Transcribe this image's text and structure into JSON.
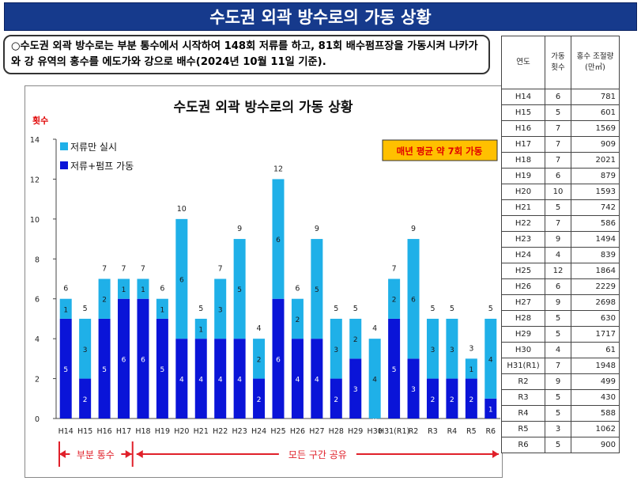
{
  "banner": {
    "title": "수도권 외곽 방수로의 가동 상황"
  },
  "summary": {
    "text": "○수도권 외곽 방수로는 부분 통수에서 시작하여 148회 저류를 하고, 81회 배수펌프장을 가동시켜 나카가와 강 유역의 홍수를 에도가와 강으로 배수(2024년 10월 11일 기준)."
  },
  "colors": {
    "stored_only": "#1fb0e8",
    "stored_pump": "#0a14d8",
    "arrow": "#e0202a",
    "callout_bg": "#ffc000",
    "callout_text": "#e00000",
    "banner_bg": "#163a8c"
  },
  "chart_data": {
    "type": "bar",
    "stacked": true,
    "title": "수도권 외곽 방수로의 가동 상황",
    "ylabel": "횟수",
    "xlabel": "",
    "ylim": [
      0,
      14
    ],
    "yticks": [
      0,
      2,
      4,
      6,
      8,
      10,
      12,
      14
    ],
    "grid": false,
    "legend_position": "top-left",
    "categories": [
      "H14",
      "H15",
      "H16",
      "H17",
      "H18",
      "H19",
      "H20",
      "H21",
      "H22",
      "H23",
      "H24",
      "H25",
      "H26",
      "H27",
      "H28",
      "H29",
      "H30",
      "H31(R1)",
      "R2",
      "R3",
      "R4",
      "R5",
      "R6"
    ],
    "series": [
      {
        "name": "저류+펌프 가동",
        "values": [
          5,
          2,
          5,
          6,
          6,
          5,
          4,
          4,
          4,
          4,
          2,
          6,
          4,
          4,
          2,
          3,
          0,
          5,
          3,
          2,
          2,
          2,
          1
        ]
      },
      {
        "name": "저류만 실시",
        "values": [
          1,
          3,
          2,
          1,
          1,
          1,
          6,
          1,
          3,
          5,
          2,
          6,
          2,
          5,
          3,
          2,
          4,
          2,
          6,
          3,
          3,
          1,
          4
        ]
      }
    ],
    "totals": [
      6,
      5,
      7,
      7,
      7,
      6,
      10,
      5,
      7,
      9,
      4,
      12,
      6,
      9,
      5,
      5,
      4,
      7,
      9,
      5,
      5,
      3,
      5
    ],
    "annotation": "매년 평균 약 7회 가동",
    "periods": [
      {
        "label": "부분 통수",
        "from": "H14",
        "to": "H17"
      },
      {
        "label": "모든 구간 공유",
        "from": "H18",
        "to": "R6"
      }
    ]
  },
  "table": {
    "headers": {
      "era": "연도",
      "count": "가동 횟수",
      "volume": "홍수 조절량(만㎥)"
    },
    "rows": [
      {
        "era": "H14",
        "count": "6",
        "volume": "781"
      },
      {
        "era": "H15",
        "count": "5",
        "volume": "601"
      },
      {
        "era": "H16",
        "count": "7",
        "volume": "1569"
      },
      {
        "era": "H17",
        "count": "7",
        "volume": "909"
      },
      {
        "era": "H18",
        "count": "7",
        "volume": "2021"
      },
      {
        "era": "H19",
        "count": "6",
        "volume": "879"
      },
      {
        "era": "H20",
        "count": "10",
        "volume": "1593"
      },
      {
        "era": "H21",
        "count": "5",
        "volume": "742"
      },
      {
        "era": "H22",
        "count": "7",
        "volume": "586"
      },
      {
        "era": "H23",
        "count": "9",
        "volume": "1494"
      },
      {
        "era": "H24",
        "count": "4",
        "volume": "839"
      },
      {
        "era": "H25",
        "count": "12",
        "volume": "1864"
      },
      {
        "era": "H26",
        "count": "6",
        "volume": "2229"
      },
      {
        "era": "H27",
        "count": "9",
        "volume": "2698"
      },
      {
        "era": "H28",
        "count": "5",
        "volume": "630"
      },
      {
        "era": "H29",
        "count": "5",
        "volume": "1717"
      },
      {
        "era": "H30",
        "count": "4",
        "volume": "61"
      },
      {
        "era": "H31(R1)",
        "count": "7",
        "volume": "1948"
      },
      {
        "era": "R2",
        "count": "9",
        "volume": "499"
      },
      {
        "era": "R3",
        "count": "5",
        "volume": "430"
      },
      {
        "era": "R4",
        "count": "5",
        "volume": "588"
      },
      {
        "era": "R5",
        "count": "3",
        "volume": "1062"
      },
      {
        "era": "R6",
        "count": "5",
        "volume": "900"
      }
    ]
  }
}
